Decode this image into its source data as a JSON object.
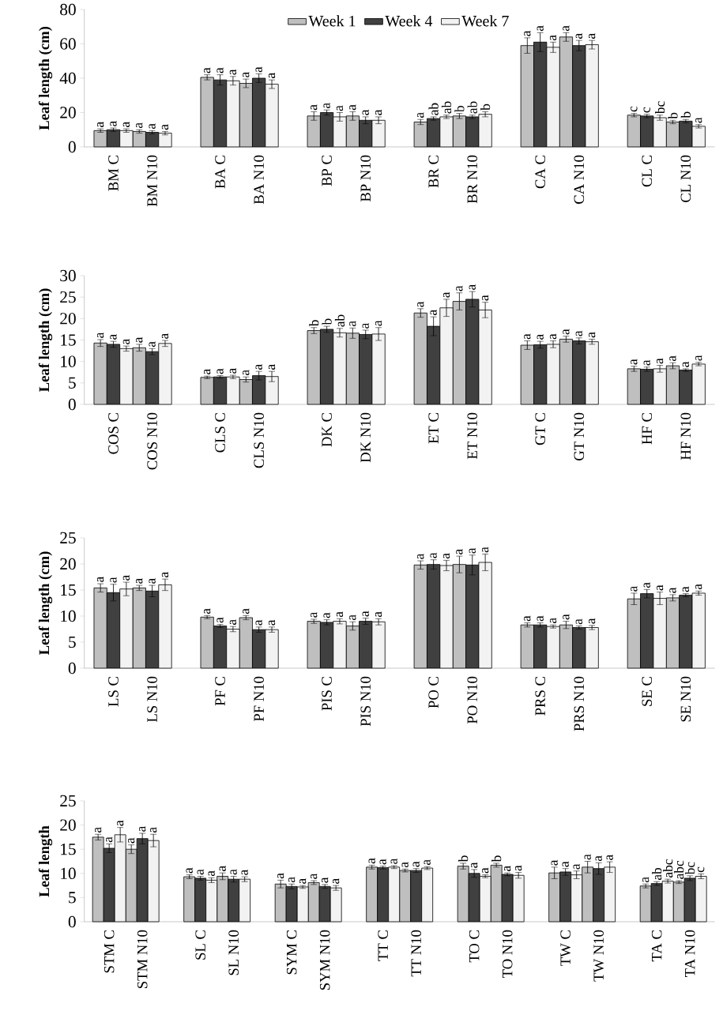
{
  "chart_data": [
    {
      "type": "bar",
      "ylabel": "Leaf length (cm)",
      "legend": "top",
      "categories": [
        "BM C",
        "BM N10",
        "BA C",
        "BA N10",
        "BP C",
        "BP N10",
        "BR C",
        "BR N10",
        "CA C",
        "CA N10",
        "CL C",
        "CL N10"
      ],
      "ylim": [
        0,
        80
      ],
      "yticks": [
        0,
        20,
        40,
        60,
        80
      ],
      "series": [
        {
          "name": "Week 1",
          "color": "#bfbfbf",
          "values": [
            9.5,
            9,
            40.5,
            37,
            18,
            18,
            14.5,
            18,
            59,
            64,
            18.5,
            14.5
          ],
          "errors": [
            1,
            1,
            1.5,
            2.5,
            2.5,
            2.5,
            1.5,
            1.5,
            4.5,
            2.5,
            1,
            1
          ],
          "value_labels": [
            "a",
            "a",
            "a",
            "a",
            "a",
            "a",
            "a",
            "b",
            "a",
            "a",
            "c",
            "b"
          ]
        },
        {
          "name": "Week 4",
          "color": "#404040",
          "values": [
            10,
            8.5,
            39,
            40,
            20,
            15.5,
            16.5,
            17.5,
            61,
            59,
            18,
            15
          ],
          "errors": [
            1,
            1,
            3,
            2.5,
            1.5,
            2,
            1,
            1,
            5.5,
            3,
            1,
            1
          ],
          "value_labels": [
            "a",
            "a",
            "a",
            "a",
            "a",
            "a",
            "ab",
            "ab",
            "a",
            "a",
            "c",
            "b"
          ]
        },
        {
          "name": "Week 7",
          "color": "#f2f2f2",
          "values": [
            9.5,
            8,
            38.5,
            36.5,
            17.5,
            15.5,
            17.5,
            19,
            58,
            59.5,
            17,
            12
          ],
          "errors": [
            1,
            1,
            2.5,
            2.5,
            2.5,
            2,
            1,
            1.5,
            3,
            2.5,
            1.5,
            1
          ],
          "value_labels": [
            "a",
            "a",
            "a",
            "a",
            "a",
            "a",
            "ab",
            "b",
            "a",
            "a",
            "bc",
            "a"
          ]
        }
      ]
    },
    {
      "type": "bar",
      "ylabel": "Leaf length (cm)",
      "categories": [
        "COS C",
        "COS N10",
        "CLS C",
        "CLS N10",
        "DK C",
        "DK N10",
        "ET C",
        "ET N10",
        "GT C",
        "GT N10",
        "HF C",
        "HF N10"
      ],
      "ylim": [
        0,
        30
      ],
      "yticks": [
        0,
        5,
        10,
        15,
        20,
        25,
        30
      ],
      "series": [
        {
          "color": "#bfbfbf",
          "values": [
            14.3,
            13.2,
            6.3,
            5.8,
            17.2,
            16.6,
            21.3,
            24,
            13.8,
            15.2,
            8.3,
            9
          ],
          "errors": [
            0.8,
            0.8,
            0.3,
            0.6,
            0.7,
            1.2,
            1,
            2,
            1,
            0.7,
            0.6,
            0.7
          ],
          "value_labels": [
            "a",
            "a",
            "a",
            "a",
            "b",
            "a",
            "a",
            "a",
            "a",
            "a",
            "a",
            "a"
          ]
        },
        {
          "color": "#404040",
          "values": [
            14,
            12.3,
            6.4,
            6.7,
            17.5,
            16.3,
            18.2,
            24.5,
            13.9,
            14.8,
            8.2,
            8
          ],
          "errors": [
            0.7,
            0.7,
            0.3,
            1,
            0.7,
            1,
            2.2,
            1.8,
            0.8,
            0.7,
            0.5,
            0.3
          ],
          "value_labels": [
            "a",
            "a",
            "a",
            "a",
            "b",
            "a",
            "a",
            "a",
            "a",
            "a",
            "a",
            "a"
          ]
        },
        {
          "color": "#f2f2f2",
          "values": [
            13,
            14.2,
            6.4,
            6.5,
            16.7,
            16.4,
            22.5,
            22,
            14,
            14.6,
            8.3,
            9.4
          ],
          "errors": [
            0.6,
            0.7,
            0.4,
            1.2,
            1,
            1.5,
            2,
            1.8,
            0.8,
            0.6,
            0.8,
            0.4
          ],
          "value_labels": [
            "a",
            "a",
            "a",
            "a",
            "ab",
            "a",
            "a",
            "a",
            "a",
            "a",
            "a",
            "a"
          ]
        }
      ]
    },
    {
      "type": "bar",
      "ylabel": "Leaf length (cm)",
      "categories": [
        "LS C",
        "LS N10",
        "PF C",
        "PF N10",
        "PIS C",
        "PIS N10",
        "PO C",
        "PO N10",
        "PRS C",
        "PRS N10",
        "SE C",
        "SE N10"
      ],
      "ylim": [
        0,
        25
      ],
      "yticks": [
        0,
        5,
        10,
        15,
        20,
        25
      ],
      "series": [
        {
          "color": "#bfbfbf",
          "values": [
            15.4,
            15.4,
            9.8,
            9.7,
            9,
            8.1,
            19.8,
            19.9,
            8.3,
            8.3,
            13.3,
            13.5
          ],
          "errors": [
            0.8,
            0.5,
            0.3,
            0.4,
            0.4,
            0.8,
            0.8,
            1.6,
            0.4,
            0.7,
            1.1,
            0.6
          ],
          "value_labels": [
            "a",
            "a",
            "a",
            "a",
            "a",
            "a",
            "a",
            "a",
            "a",
            "a",
            "a",
            "a"
          ]
        },
        {
          "color": "#404040",
          "values": [
            14.5,
            14.8,
            8.1,
            7.4,
            8.8,
            9,
            19.9,
            19.8,
            8.3,
            7.8,
            14.3,
            14
          ],
          "errors": [
            1.6,
            1.1,
            0.3,
            0.5,
            0.5,
            0.6,
            0.9,
            1.9,
            0.4,
            0.3,
            0.8,
            0.3
          ],
          "value_labels": [
            "a",
            "a",
            "a",
            "a",
            "a",
            "a",
            "a",
            "a",
            "a",
            "a",
            "a",
            "a"
          ]
        },
        {
          "color": "#f2f2f2",
          "values": [
            15.2,
            16,
            7.5,
            7.4,
            9,
            8.9,
            19.7,
            20.3,
            8,
            7.8,
            13.4,
            14.4
          ],
          "errors": [
            1.3,
            1.1,
            0.5,
            0.5,
            0.5,
            0.6,
            1,
            1.6,
            0.3,
            0.4,
            1.2,
            0.4
          ],
          "value_labels": [
            "a",
            "a",
            "a",
            "a",
            "a",
            "a",
            "a",
            "a",
            "a",
            "a",
            "a",
            "a"
          ]
        }
      ]
    },
    {
      "type": "bar",
      "ylabel": "Leaf length",
      "categories": [
        "STM C",
        "STM N10",
        "SL C",
        "SL N10",
        "SYM C",
        "SYM N10",
        "TT C",
        "TT N10",
        "TO C",
        "TO N10",
        "TW C",
        "TW N10",
        "TA C",
        "TA N10"
      ],
      "ylim": [
        0,
        25
      ],
      "yticks": [
        0,
        5,
        10,
        15,
        20,
        25
      ],
      "series": [
        {
          "color": "#bfbfbf",
          "values": [
            17.5,
            15,
            9.3,
            9.4,
            7.8,
            8.1,
            11.3,
            10.6,
            11.5,
            11.7,
            10.1,
            11.3,
            7.4,
            8.2
          ],
          "errors": [
            0.6,
            0.9,
            0.4,
            0.7,
            0.8,
            0.4,
            0.4,
            0.3,
            0.6,
            0.4,
            1.2,
            1.2,
            0.4,
            0.3
          ],
          "value_labels": [
            "a",
            "a",
            "a",
            "a",
            "a",
            "a",
            "a",
            "a",
            "b",
            "b",
            "a",
            "a",
            "a",
            "abc"
          ]
        },
        {
          "color": "#404040",
          "values": [
            15.2,
            17.2,
            9,
            8.8,
            7.3,
            7.3,
            11.2,
            10.6,
            10,
            9.8,
            10.3,
            11,
            7.9,
            9
          ],
          "errors": [
            0.9,
            1.1,
            0.4,
            0.6,
            0.5,
            0.4,
            0.3,
            0.4,
            0.8,
            0.3,
            0.7,
            1.2,
            0.4,
            0.5
          ],
          "value_labels": [
            "a",
            "a",
            "a",
            "a",
            "a",
            "a",
            "a",
            "a",
            "a",
            "a",
            "a",
            "a",
            "ab",
            "bc"
          ]
        },
        {
          "color": "#f2f2f2",
          "values": [
            18,
            16.8,
            8.6,
            8.8,
            7.2,
            7,
            11.3,
            11.1,
            9.4,
            9.6,
            9.7,
            11.3,
            8.4,
            9.4
          ],
          "errors": [
            1.5,
            1.3,
            0.5,
            0.5,
            0.3,
            0.5,
            0.3,
            0.3,
            0.3,
            0.6,
            0.8,
            1.1,
            0.4,
            0.5
          ],
          "value_labels": [
            "a",
            "a",
            "a",
            "a",
            "a",
            "a",
            "a",
            "a",
            "a",
            "a",
            "a",
            "a",
            "abc",
            "c"
          ]
        }
      ]
    }
  ]
}
